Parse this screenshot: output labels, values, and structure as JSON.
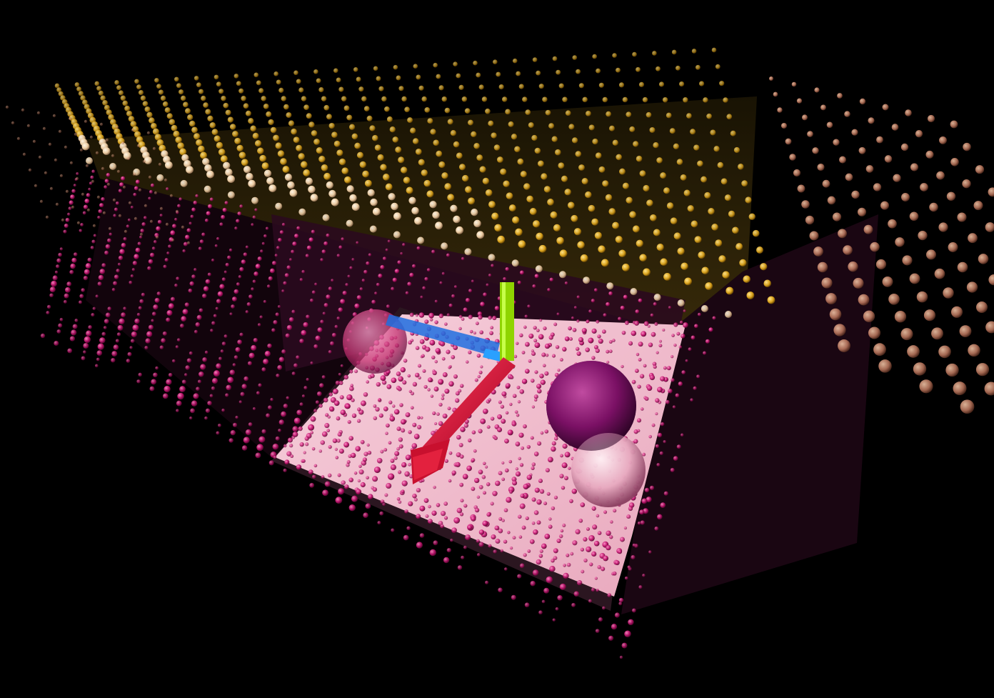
{
  "scene": {
    "background": "#000000",
    "ceiling_dot_color_near": "#f2d9b0",
    "ceiling_dot_color_far": "#d9a21c",
    "ceiling_panel_color": "#2a2107",
    "wall_dot_color": "#c2136f",
    "wall_dot_highlight": "#ff5fae",
    "floor_slab_color": "#f0b6c8",
    "floor_slab_edge_color": "#2b1620",
    "arrow_color": "#d8123a",
    "green_bar_color": "#8fd400",
    "blue_strip_color": "#1e6fe0",
    "purple_sphere_color": "#8a1470",
    "pink_sphere_color": "#f3c9d6"
  }
}
